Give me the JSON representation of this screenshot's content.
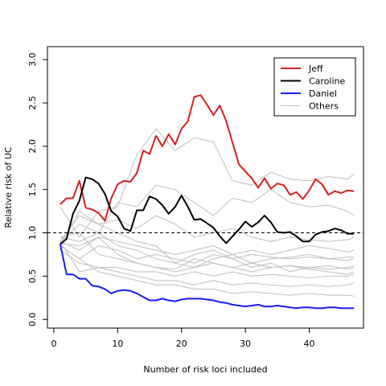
{
  "chart_data": {
    "type": "line",
    "title": "",
    "xlabel": "Number of risk loci included",
    "ylabel": "Relative risk of UC",
    "xlim": [
      -1,
      48.5
    ],
    "ylim": [
      -0.1,
      3.15
    ],
    "xticks": [
      0,
      10,
      20,
      30,
      40
    ],
    "yticks": [
      0.0,
      0.5,
      1.0,
      1.5,
      2.0,
      2.5,
      3.0
    ],
    "xtick_labels": [
      "0",
      "10",
      "20",
      "30",
      "40"
    ],
    "ytick_labels": [
      "0.0",
      "0.5",
      "1.0",
      "1.5",
      "2.0",
      "2.5",
      "3.0"
    ],
    "reference_line": {
      "y": 1.0,
      "style": "dashed"
    },
    "grid": false,
    "legend_position": "top-right",
    "legend": [
      {
        "label": "Jeff",
        "color": "#d62020"
      },
      {
        "label": "Caroline",
        "color": "#000000"
      },
      {
        "label": "Daniel",
        "color": "#1a1aff"
      },
      {
        "label": "Others",
        "color": "#bebebe"
      }
    ],
    "series": [
      {
        "name": "Jeff",
        "color": "#d62020",
        "x": [
          1,
          2,
          3,
          4,
          5,
          6,
          7,
          8,
          9,
          10,
          11,
          12,
          13,
          14,
          15,
          16,
          17,
          18,
          19,
          20,
          21,
          22,
          23,
          24,
          25,
          26,
          27,
          28,
          29,
          30,
          31,
          32,
          33,
          34,
          35,
          36,
          37,
          38,
          39,
          40,
          41,
          42,
          43,
          44,
          45,
          46,
          47
        ],
        "y": [
          1.33,
          1.4,
          1.4,
          1.6,
          1.29,
          1.27,
          1.23,
          1.14,
          1.4,
          1.56,
          1.6,
          1.59,
          1.69,
          1.95,
          1.91,
          2.12,
          2.0,
          2.14,
          2.02,
          2.2,
          2.29,
          2.57,
          2.59,
          2.48,
          2.36,
          2.47,
          2.29,
          2.04,
          1.79,
          1.71,
          1.63,
          1.52,
          1.63,
          1.51,
          1.57,
          1.55,
          1.44,
          1.47,
          1.39,
          1.49,
          1.62,
          1.56,
          1.44,
          1.48,
          1.46,
          1.49,
          1.48
        ]
      },
      {
        "name": "Caroline",
        "color": "#000000",
        "x": [
          1,
          2,
          3,
          4,
          5,
          6,
          7,
          8,
          9,
          10,
          11,
          12,
          13,
          14,
          15,
          16,
          17,
          18,
          19,
          20,
          21,
          22,
          23,
          24,
          25,
          26,
          27,
          28,
          29,
          30,
          31,
          32,
          33,
          34,
          35,
          36,
          37,
          38,
          39,
          40,
          41,
          42,
          43,
          44,
          45,
          46,
          47
        ],
        "y": [
          0.87,
          0.93,
          1.22,
          1.37,
          1.64,
          1.62,
          1.57,
          1.45,
          1.25,
          1.19,
          1.05,
          1.02,
          1.26,
          1.26,
          1.42,
          1.39,
          1.32,
          1.22,
          1.3,
          1.43,
          1.3,
          1.15,
          1.16,
          1.11,
          1.06,
          0.96,
          0.88,
          0.96,
          1.04,
          1.13,
          1.07,
          1.12,
          1.2,
          1.12,
          1.01,
          1.0,
          1.01,
          0.96,
          0.9,
          0.9,
          0.98,
          1.01,
          1.02,
          1.05,
          1.03,
          0.99,
          0.99
        ]
      },
      {
        "name": "Daniel",
        "color": "#1a1aff",
        "x": [
          1,
          2,
          3,
          4,
          5,
          6,
          7,
          8,
          9,
          10,
          11,
          12,
          13,
          14,
          15,
          16,
          17,
          18,
          19,
          20,
          21,
          22,
          23,
          24,
          25,
          26,
          27,
          28,
          29,
          30,
          31,
          32,
          33,
          34,
          35,
          36,
          37,
          38,
          39,
          40,
          41,
          42,
          43,
          44,
          45,
          46,
          47
        ],
        "y": [
          0.87,
          0.52,
          0.52,
          0.47,
          0.47,
          0.39,
          0.38,
          0.35,
          0.3,
          0.33,
          0.34,
          0.33,
          0.3,
          0.26,
          0.22,
          0.22,
          0.24,
          0.22,
          0.21,
          0.23,
          0.24,
          0.24,
          0.24,
          0.23,
          0.22,
          0.2,
          0.19,
          0.17,
          0.16,
          0.15,
          0.16,
          0.17,
          0.15,
          0.15,
          0.16,
          0.15,
          0.14,
          0.13,
          0.14,
          0.14,
          0.13,
          0.13,
          0.14,
          0.14,
          0.13,
          0.13,
          0.13
        ]
      }
    ],
    "others": {
      "name": "Others",
      "color": "#bebebe",
      "x": [
        1,
        4,
        7,
        10,
        13,
        16,
        19,
        22,
        25,
        28,
        31,
        34,
        37,
        40,
        43,
        46,
        47
      ],
      "lines": [
        [
          1.3,
          0.95,
          1.25,
          1.3,
          1.9,
          2.2,
          1.95,
          2.1,
          2.05,
          1.6,
          1.55,
          1.7,
          1.62,
          1.6,
          1.65,
          1.62,
          1.68
        ],
        [
          0.9,
          1.1,
          1.0,
          1.35,
          1.3,
          1.55,
          1.5,
          1.35,
          1.2,
          1.4,
          1.35,
          1.5,
          1.35,
          1.3,
          1.32,
          1.25,
          1.2
        ],
        [
          0.85,
          1.25,
          1.1,
          1.15,
          1.05,
          1.2,
          1.1,
          0.95,
          1.0,
          1.05,
          0.95,
          0.9,
          0.95,
          0.92,
          0.9,
          0.92,
          0.95
        ],
        [
          0.9,
          0.8,
          0.95,
          0.9,
          0.85,
          0.8,
          0.75,
          0.8,
          0.85,
          0.75,
          0.8,
          0.75,
          0.8,
          0.85,
          0.82,
          0.78,
          0.8
        ],
        [
          0.85,
          0.7,
          0.85,
          0.8,
          0.7,
          0.75,
          0.7,
          0.65,
          0.75,
          0.7,
          0.75,
          0.72,
          0.7,
          0.72,
          0.7,
          0.72,
          0.72
        ],
        [
          0.95,
          1.0,
          0.75,
          0.7,
          0.65,
          0.6,
          0.55,
          0.6,
          0.65,
          0.6,
          0.65,
          0.6,
          0.62,
          0.6,
          0.58,
          0.6,
          0.62
        ],
        [
          0.8,
          0.65,
          0.6,
          0.6,
          0.55,
          0.55,
          0.5,
          0.55,
          0.5,
          0.55,
          0.5,
          0.52,
          0.5,
          0.48,
          0.5,
          0.5,
          0.52
        ],
        [
          0.9,
          0.55,
          0.6,
          0.55,
          0.5,
          0.45,
          0.45,
          0.4,
          0.45,
          0.4,
          0.42,
          0.4,
          0.38,
          0.4,
          0.38,
          0.4,
          0.42
        ],
        [
          0.85,
          0.7,
          0.55,
          0.5,
          0.45,
          0.4,
          0.4,
          0.35,
          0.35,
          0.3,
          0.32,
          0.3,
          0.28,
          0.3,
          0.28,
          0.28,
          0.27
        ],
        [
          0.9,
          1.2,
          1.1,
          1.0,
          0.9,
          0.85,
          0.65,
          0.6,
          0.7,
          0.75,
          0.65,
          0.7,
          0.72,
          0.75,
          0.7,
          0.68,
          0.7
        ],
        [
          0.88,
          0.85,
          0.95,
          0.75,
          0.65,
          0.6,
          0.58,
          0.7,
          0.65,
          0.6,
          0.55,
          0.6,
          0.62,
          0.58,
          0.55,
          0.52,
          0.55
        ],
        [
          0.95,
          0.9,
          1.0,
          0.85,
          0.8,
          0.7,
          0.65,
          0.75,
          0.8,
          0.7,
          0.6,
          0.65,
          0.55,
          0.6,
          0.62,
          0.58,
          0.6
        ]
      ]
    }
  }
}
